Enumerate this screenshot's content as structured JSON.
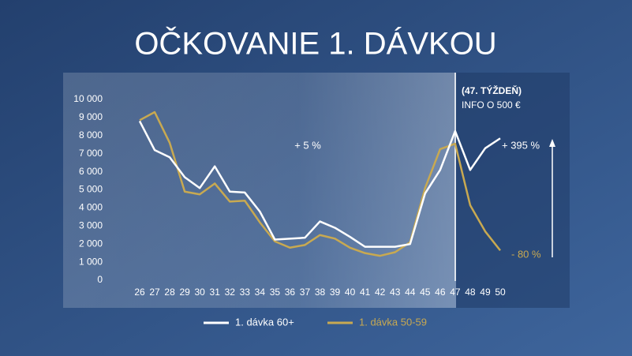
{
  "chart_data": {
    "type": "line",
    "title": "OČKOVANIE 1. DÁVKOU",
    "categories": [
      "26",
      "27",
      "28",
      "29",
      "30",
      "31",
      "32",
      "33",
      "34",
      "35",
      "36",
      "37",
      "38",
      "39",
      "40",
      "41",
      "42",
      "43",
      "44",
      "45",
      "46",
      "47",
      "48",
      "49",
      "50"
    ],
    "series": [
      {
        "name": "1. dávka 60+",
        "color": "#ffffff",
        "values": [
          8800,
          7200,
          6800,
          5700,
          5100,
          6300,
          4900,
          4850,
          3800,
          2250,
          2300,
          2350,
          3250,
          2900,
          2400,
          1850,
          1850,
          1850,
          2000,
          4800,
          6100,
          8250,
          6100,
          7300,
          7850
        ]
      },
      {
        "name": "1. dávka 50-59",
        "color": "#c8a951",
        "values": [
          8850,
          9300,
          7600,
          4900,
          4750,
          5350,
          4350,
          4400,
          3200,
          2150,
          1800,
          1950,
          2500,
          2300,
          1800,
          1500,
          1350,
          1550,
          2100,
          5100,
          7250,
          7550,
          4150,
          2700,
          1650
        ]
      }
    ],
    "ylim": [
      0,
      10000
    ],
    "yticks": [
      0,
      {
        "value": 1000,
        "label": "1 000"
      },
      {
        "value": 2000,
        "label": "2 000"
      },
      {
        "value": 3000,
        "label": "3 000"
      },
      {
        "value": 4000,
        "label": "4 000"
      },
      {
        "value": 5000,
        "label": "5 000"
      },
      {
        "value": 6000,
        "label": "6 000"
      },
      {
        "value": 7000,
        "label": "7 000"
      },
      {
        "value": 8000,
        "label": "8 000"
      },
      {
        "value": 9000,
        "label": "9 000"
      },
      {
        "value": 10000,
        "label": "10 000"
      }
    ],
    "annotations": [
      "+ 5 %",
      "(47. TÝŽDEŇ)",
      "INFO O 500 €",
      "+ 395 %",
      "- 80 %"
    ],
    "legend": "bottom"
  }
}
